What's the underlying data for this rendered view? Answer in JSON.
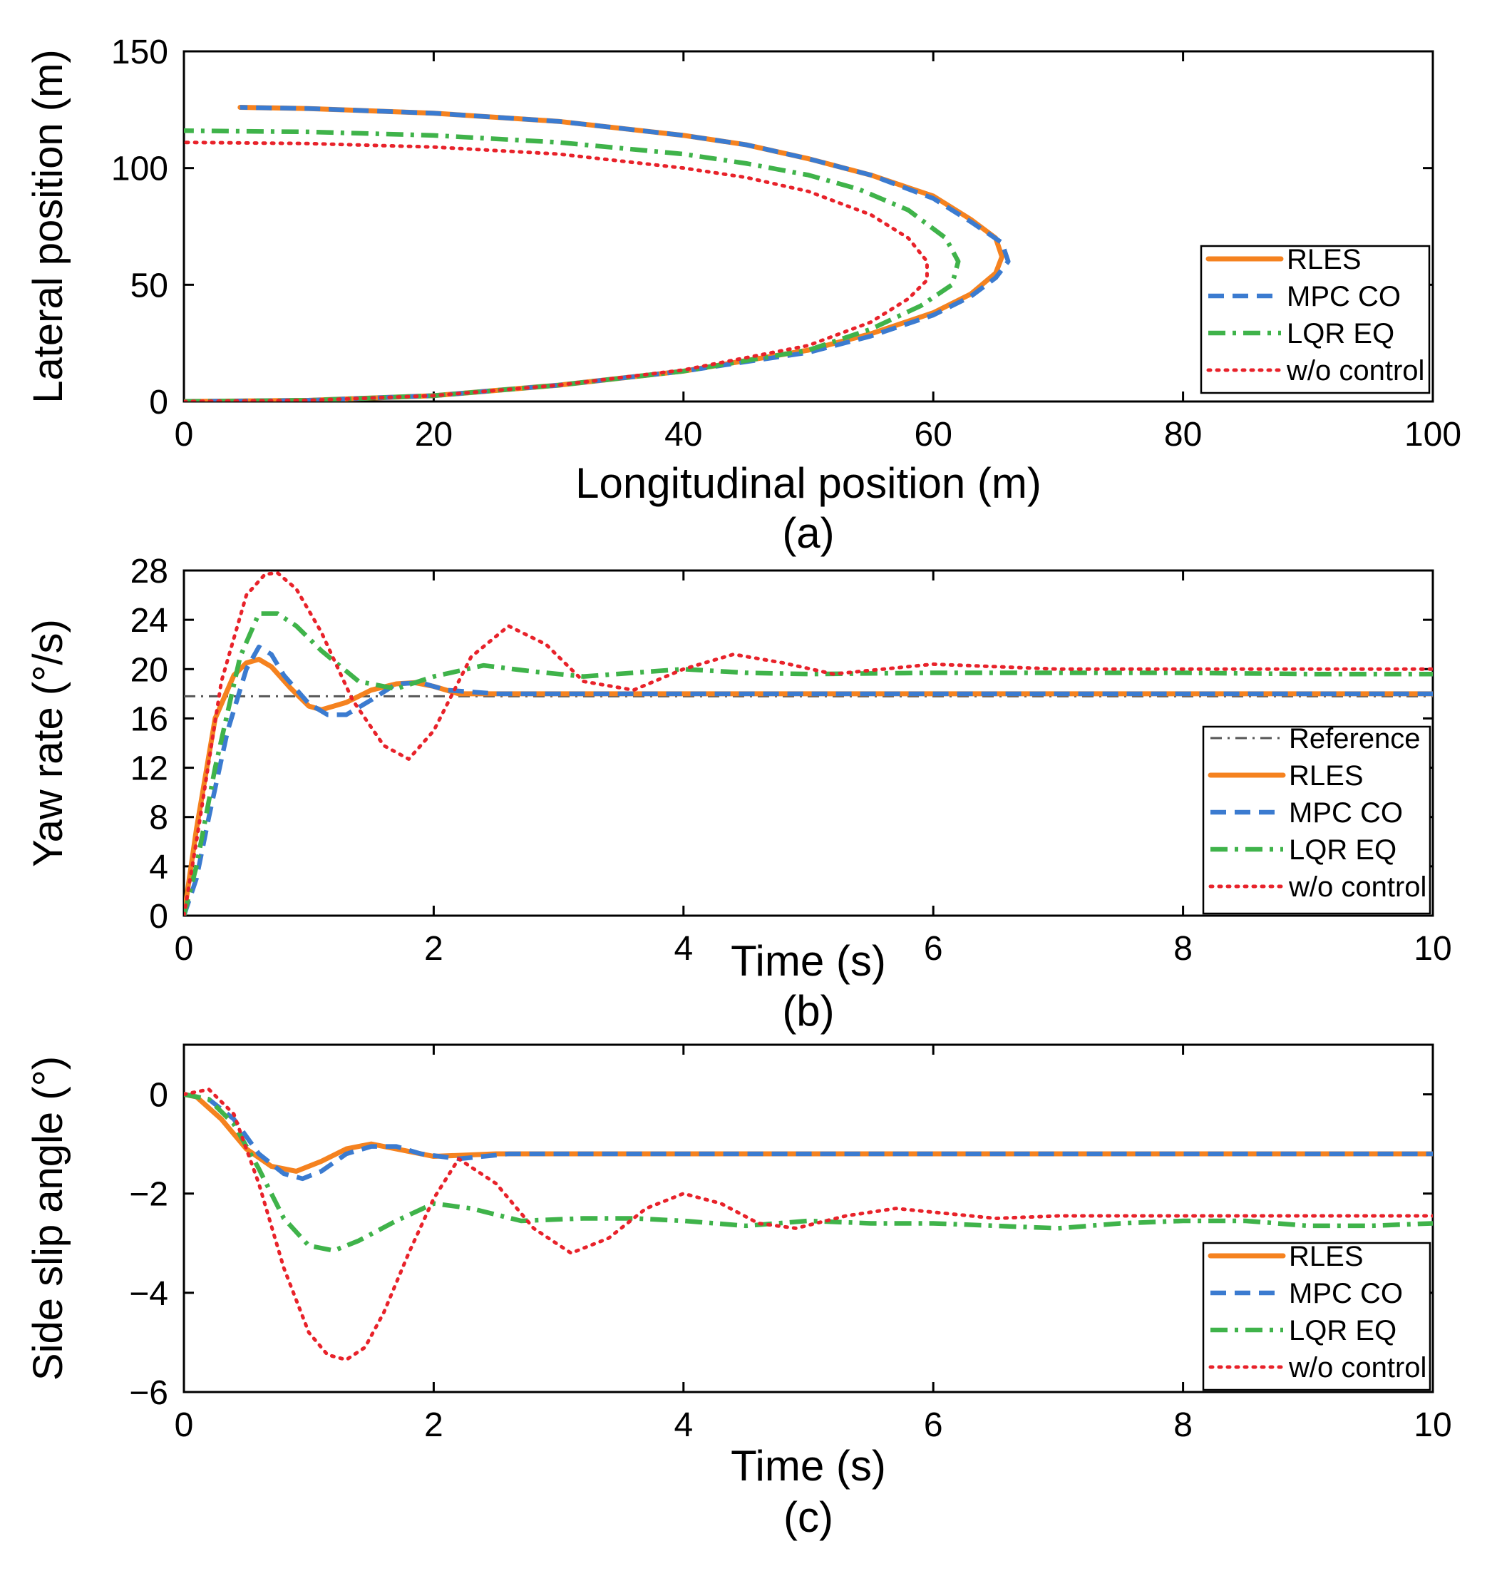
{
  "colors": {
    "RLES": "#f5821f",
    "MPC CO": "#3b7bd0",
    "LQR EQ": "#3fb34a",
    "w/o control": "#e8222a",
    "Reference": "#555555"
  },
  "chart_data": [
    {
      "id": "a",
      "type": "line",
      "caption": "(a)",
      "xlabel": "Longitudinal position (m)",
      "ylabel": "Lateral position (m)",
      "xlim": [
        0,
        100
      ],
      "ylim": [
        0,
        150
      ],
      "xticks": [
        0,
        20,
        40,
        60,
        80,
        100
      ],
      "xtick_labels": [
        "0",
        "20",
        "40",
        "60",
        "80",
        "100"
      ],
      "yticks": [
        0,
        50,
        100,
        150
      ],
      "ytick_labels": [
        "0",
        "50",
        "100",
        "150"
      ],
      "grid": false,
      "legend_position": "right",
      "series": [
        {
          "name": "RLES",
          "style": "solid",
          "x": [
            0,
            10,
            20,
            30,
            40,
            50,
            55,
            60,
            63,
            65,
            65.5,
            65,
            63,
            60,
            55,
            50,
            45,
            40,
            30,
            20,
            10,
            4.5
          ],
          "y": [
            0,
            0.5,
            2.5,
            7,
            13,
            22,
            29,
            38,
            46,
            55,
            62,
            70,
            78,
            88,
            97,
            104,
            110,
            114,
            120,
            123.5,
            125.5,
            126
          ]
        },
        {
          "name": "MPC CO",
          "style": "dashed",
          "x": [
            0,
            10,
            20,
            30,
            40,
            50,
            55,
            60,
            63,
            65,
            66,
            65.5,
            63,
            60,
            55,
            50,
            45,
            40,
            30,
            20,
            10,
            4.5
          ],
          "y": [
            0,
            0.5,
            2.5,
            7,
            13,
            21,
            28,
            37,
            45,
            53,
            60,
            68,
            77,
            87,
            97,
            104,
            110,
            114,
            120,
            123.5,
            125.5,
            126
          ]
        },
        {
          "name": "LQR EQ",
          "style": "dashdot",
          "x": [
            0,
            10,
            20,
            30,
            40,
            50,
            55,
            59,
            61.5,
            62,
            61,
            58,
            54,
            50,
            45,
            40,
            30,
            20,
            10,
            0
          ],
          "y": [
            0,
            0.5,
            2.5,
            7,
            13,
            22,
            31,
            41,
            50,
            60,
            70,
            82,
            91,
            97,
            102,
            106,
            111,
            114,
            115.5,
            116
          ]
        },
        {
          "name": "w/o control",
          "style": "dotted",
          "x": [
            0,
            10,
            20,
            30,
            40,
            50,
            55,
            58,
            59.5,
            59.5,
            58,
            55,
            50,
            45,
            40,
            30,
            20,
            10,
            0
          ],
          "y": [
            0,
            0.5,
            2.5,
            7,
            13.5,
            24,
            34,
            44,
            52,
            60,
            70,
            80,
            90,
            96,
            100,
            106,
            109,
            110.5,
            111
          ]
        }
      ]
    },
    {
      "id": "b",
      "type": "line",
      "caption": "(b)",
      "xlabel": "Time (s)",
      "ylabel": "Yaw rate (°/s)",
      "xlim": [
        0,
        10
      ],
      "ylim": [
        0,
        28
      ],
      "xticks": [
        0,
        2,
        4,
        6,
        8,
        10
      ],
      "xtick_labels": [
        "0",
        "2",
        "4",
        "6",
        "8",
        "10"
      ],
      "yticks": [
        0,
        4,
        8,
        12,
        16,
        20,
        24,
        28
      ],
      "ytick_labels": [
        "0",
        "4",
        "8",
        "12",
        "16",
        "20",
        "24",
        "28"
      ],
      "grid": false,
      "legend_position": "bottom-right",
      "series": [
        {
          "name": "Reference",
          "style": "ref",
          "x": [
            0,
            10
          ],
          "y": [
            17.8,
            17.8
          ]
        },
        {
          "name": "RLES",
          "style": "solid",
          "x": [
            0,
            0.1,
            0.25,
            0.4,
            0.5,
            0.6,
            0.7,
            0.85,
            1.0,
            1.1,
            1.3,
            1.5,
            1.7,
            1.85,
            2.0,
            2.2,
            2.5,
            3,
            4,
            5,
            6,
            7,
            8,
            9,
            10
          ],
          "y": [
            0,
            7,
            16,
            19.5,
            20.5,
            20.8,
            20.2,
            18.5,
            17,
            16.7,
            17.3,
            18.3,
            18.8,
            18.9,
            18.6,
            18,
            18,
            18,
            18,
            18,
            18,
            18,
            18,
            18,
            18
          ]
        },
        {
          "name": "MPC CO",
          "style": "dashed",
          "x": [
            0,
            0.1,
            0.2,
            0.35,
            0.5,
            0.6,
            0.7,
            0.8,
            1.0,
            1.15,
            1.3,
            1.5,
            1.7,
            1.9,
            2.1,
            2.5,
            3,
            4,
            5,
            6,
            7,
            8,
            9,
            10
          ],
          "y": [
            0,
            3,
            8,
            15,
            20,
            21.8,
            21.2,
            19.5,
            17.2,
            16.3,
            16.3,
            17.5,
            18.8,
            18.9,
            18.3,
            18,
            18,
            18,
            18,
            18,
            18,
            18,
            18,
            18
          ]
        },
        {
          "name": "LQR EQ",
          "style": "dashdot",
          "x": [
            0,
            0.1,
            0.25,
            0.45,
            0.6,
            0.75,
            0.9,
            1.1,
            1.4,
            1.7,
            2.0,
            2.4,
            2.8,
            3.2,
            3.6,
            4.0,
            4.5,
            5,
            6,
            7,
            8,
            9,
            10
          ],
          "y": [
            0,
            4,
            12,
            21,
            24.5,
            24.5,
            23.5,
            21.5,
            19,
            18.4,
            19.4,
            20.3,
            19.8,
            19.4,
            19.7,
            20.0,
            19.7,
            19.6,
            19.7,
            19.7,
            19.7,
            19.6,
            19.6
          ]
        },
        {
          "name": "w/o control",
          "style": "dotted",
          "x": [
            0,
            0.1,
            0.3,
            0.5,
            0.65,
            0.75,
            0.9,
            1.1,
            1.35,
            1.6,
            1.8,
            2.0,
            2.3,
            2.6,
            2.9,
            3.2,
            3.6,
            4.0,
            4.4,
            4.8,
            5.2,
            6.0,
            7,
            8,
            9,
            10
          ],
          "y": [
            0,
            6,
            19,
            26,
            27.7,
            27.8,
            26.5,
            23,
            17.5,
            13.8,
            12.7,
            15,
            21,
            23.5,
            22,
            19,
            18.3,
            20,
            21.2,
            20.5,
            19.6,
            20.4,
            20,
            20,
            20,
            20
          ]
        }
      ]
    },
    {
      "id": "c",
      "type": "line",
      "caption": "(c)",
      "xlabel": "Time (s)",
      "ylabel": "Side slip angle (°)",
      "xlim": [
        0,
        10
      ],
      "ylim": [
        -6,
        1
      ],
      "xticks": [
        0,
        2,
        4,
        6,
        8,
        10
      ],
      "xtick_labels": [
        "0",
        "2",
        "4",
        "6",
        "8",
        "10"
      ],
      "yticks": [
        -6,
        -4,
        -2,
        0
      ],
      "ytick_labels": [
        "−6",
        "−4",
        "−2",
        "0"
      ],
      "grid": false,
      "legend_position": "bottom-right",
      "series": [
        {
          "name": "RLES",
          "style": "solid",
          "x": [
            0,
            0.1,
            0.3,
            0.5,
            0.7,
            0.9,
            1.1,
            1.3,
            1.5,
            1.7,
            2.0,
            2.5,
            3,
            4,
            5,
            6,
            7,
            8,
            9,
            10
          ],
          "y": [
            0,
            -0.05,
            -0.5,
            -1.1,
            -1.45,
            -1.55,
            -1.35,
            -1.1,
            -1.0,
            -1.1,
            -1.25,
            -1.2,
            -1.2,
            -1.2,
            -1.2,
            -1.2,
            -1.2,
            -1.2,
            -1.2,
            -1.2
          ]
        },
        {
          "name": "MPC CO",
          "style": "dashed",
          "x": [
            0,
            0.2,
            0.4,
            0.6,
            0.8,
            0.95,
            1.1,
            1.3,
            1.5,
            1.7,
            1.9,
            2.2,
            2.6,
            3,
            4,
            5,
            6,
            7,
            8,
            9,
            10
          ],
          "y": [
            0,
            -0.1,
            -0.5,
            -1.2,
            -1.6,
            -1.7,
            -1.55,
            -1.2,
            -1.05,
            -1.05,
            -1.2,
            -1.3,
            -1.2,
            -1.2,
            -1.2,
            -1.2,
            -1.2,
            -1.2,
            -1.2,
            -1.2,
            -1.2
          ]
        },
        {
          "name": "LQR EQ",
          "style": "dashdot",
          "x": [
            0,
            0.2,
            0.4,
            0.6,
            0.8,
            1.0,
            1.2,
            1.4,
            1.7,
            2.0,
            2.3,
            2.7,
            3.2,
            3.6,
            4.0,
            4.5,
            5,
            5.5,
            6,
            6.5,
            7,
            7.5,
            8,
            8.5,
            9,
            9.5,
            10
          ],
          "y": [
            0,
            -0.1,
            -0.6,
            -1.5,
            -2.5,
            -3.05,
            -3.15,
            -2.95,
            -2.55,
            -2.2,
            -2.3,
            -2.55,
            -2.5,
            -2.5,
            -2.55,
            -2.65,
            -2.55,
            -2.6,
            -2.6,
            -2.65,
            -2.7,
            -2.6,
            -2.55,
            -2.55,
            -2.65,
            -2.65,
            -2.6
          ]
        },
        {
          "name": "w/o control",
          "style": "dotted",
          "x": [
            0,
            0.2,
            0.4,
            0.6,
            0.8,
            1.0,
            1.15,
            1.3,
            1.45,
            1.6,
            1.8,
            2.0,
            2.2,
            2.5,
            2.8,
            3.1,
            3.4,
            3.7,
            4.0,
            4.3,
            4.6,
            4.9,
            5.3,
            5.7,
            6.1,
            6.5,
            7,
            8,
            9,
            10
          ],
          "y": [
            0,
            0.1,
            -0.4,
            -1.8,
            -3.5,
            -4.8,
            -5.25,
            -5.35,
            -5.1,
            -4.4,
            -3.2,
            -2.1,
            -1.3,
            -1.8,
            -2.7,
            -3.2,
            -2.9,
            -2.3,
            -2.0,
            -2.2,
            -2.6,
            -2.7,
            -2.45,
            -2.3,
            -2.4,
            -2.5,
            -2.45,
            -2.45,
            -2.45,
            -2.45
          ]
        }
      ]
    }
  ]
}
